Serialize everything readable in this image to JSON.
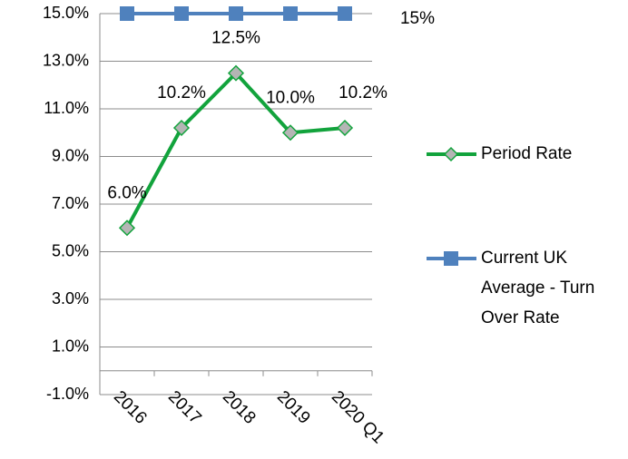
{
  "chart_data": {
    "type": "line",
    "categories": [
      "2016",
      "2017",
      "2018",
      "2019",
      "2020 Q1"
    ],
    "series": [
      {
        "name": "Period Rate",
        "color": "#12a33c",
        "marker_fill": "#b5b5b5",
        "marker": "diamond",
        "values": [
          6.0,
          10.2,
          12.5,
          10.0,
          10.2
        ],
        "value_labels": [
          "6.0%",
          "10.2%",
          "12.5%",
          "10.0%",
          "10.2%"
        ]
      },
      {
        "name": "Current UK Average - Turn Over Rate",
        "color": "#4f81bd",
        "marker_fill": "#4f81bd",
        "marker": "square",
        "values": [
          15,
          15,
          15,
          15,
          15
        ],
        "value_labels": [
          null,
          null,
          null,
          null,
          "15%"
        ]
      }
    ],
    "ylim": [
      -1,
      15
    ],
    "yticks": [
      {
        "value": -1,
        "label": "-1.0%"
      },
      {
        "value": 1,
        "label": "1.0%"
      },
      {
        "value": 3,
        "label": "3.0%"
      },
      {
        "value": 5,
        "label": "5.0%"
      },
      {
        "value": 7,
        "label": "7.0%"
      },
      {
        "value": 9,
        "label": "9.0%"
      },
      {
        "value": 11,
        "label": "11.0%"
      },
      {
        "value": 13,
        "label": "13.0%"
      },
      {
        "value": 15,
        "label": "15.0%"
      }
    ],
    "grid": true,
    "legend": "right"
  }
}
